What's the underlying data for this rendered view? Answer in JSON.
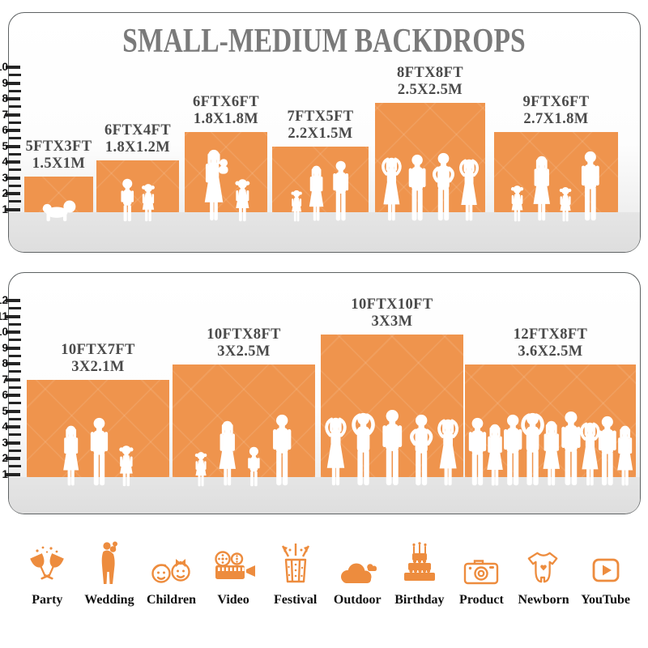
{
  "title": "SMALL-MEDIUM BACKDROPS",
  "colors": {
    "accent": "#EF944D",
    "icon_accent": "#ED8C3E",
    "title_gray": "#7A7A7A",
    "label_gray": "#4A4A4A",
    "ruler_dark": "#242424"
  },
  "panels": [
    {
      "name": "small-medium-backdrops-top",
      "ruler_numbers": [
        10,
        9,
        8,
        7,
        6,
        5,
        4,
        3,
        2,
        1
      ],
      "bars": [
        {
          "size_ft": "5FTX3FT",
          "size_m": "1.5X1M",
          "ft_w": 5,
          "ft_h": 3,
          "figures": [
            "baby"
          ]
        },
        {
          "size_ft": "6FTX4FT",
          "size_m": "1.8X1.2M",
          "ft_w": 6,
          "ft_h": 4,
          "figures": [
            "boy",
            "girl"
          ]
        },
        {
          "size_ft": "6FTX6FT",
          "size_m": "1.8X1.8M",
          "ft_w": 6,
          "ft_h": 6,
          "figures": [
            "female-baby",
            "girl"
          ]
        },
        {
          "size_ft": "7FTX5FT",
          "size_m": "2.2X1.5M",
          "ft_w": 7,
          "ft_h": 5,
          "figures": [
            "girl",
            "female",
            "male"
          ]
        },
        {
          "size_ft": "8FTX8FT",
          "size_m": "2.5X2.5M",
          "ft_w": 8,
          "ft_h": 8,
          "figures": [
            "female-armsup",
            "male",
            "male-akimbo",
            "female-armsup"
          ]
        },
        {
          "size_ft": "9FTX6FT",
          "size_m": "2.7X1.8M",
          "ft_w": 9,
          "ft_h": 6,
          "figures": [
            "girl",
            "female",
            "girl",
            "male"
          ]
        }
      ]
    },
    {
      "name": "small-medium-backdrops-bottom",
      "ruler_numbers": [
        12,
        11,
        10,
        9,
        8,
        7,
        6,
        5,
        4,
        3,
        2,
        1
      ],
      "bars": [
        {
          "size_ft": "10FTX7FT",
          "size_m": "3X2.1M",
          "ft_w": 10,
          "ft_h": 7,
          "figures": [
            "female",
            "male",
            "girl"
          ]
        },
        {
          "size_ft": "10FTX8FT",
          "size_m": "3X2.5M",
          "ft_w": 10,
          "ft_h": 8,
          "figures": [
            "girl",
            "female",
            "boy",
            "male"
          ]
        },
        {
          "size_ft": "10FTX10FT",
          "size_m": "3X3M",
          "ft_w": 10,
          "ft_h": 10,
          "figures": [
            "female-armsup",
            "male-armsup",
            "male",
            "male-akimbo",
            "female-armsup"
          ]
        },
        {
          "size_ft": "12FTX8FT",
          "size_m": "3.6X2.5M",
          "ft_w": 12,
          "ft_h": 8,
          "figures": [
            "male",
            "female",
            "male",
            "male-armsup",
            "female",
            "male",
            "female-armsup",
            "male",
            "female"
          ]
        }
      ]
    }
  ],
  "categories": [
    {
      "label": "Party",
      "icon": "party"
    },
    {
      "label": "Wedding",
      "icon": "wedding"
    },
    {
      "label": "Children",
      "icon": "children"
    },
    {
      "label": "Video",
      "icon": "video"
    },
    {
      "label": "Festival",
      "icon": "festival"
    },
    {
      "label": "Outdoor",
      "icon": "outdoor"
    },
    {
      "label": "Birthday",
      "icon": "birthday"
    },
    {
      "label": "Product",
      "icon": "product"
    },
    {
      "label": "Newborn",
      "icon": "newborn"
    },
    {
      "label": "YouTube",
      "icon": "youtube"
    }
  ]
}
